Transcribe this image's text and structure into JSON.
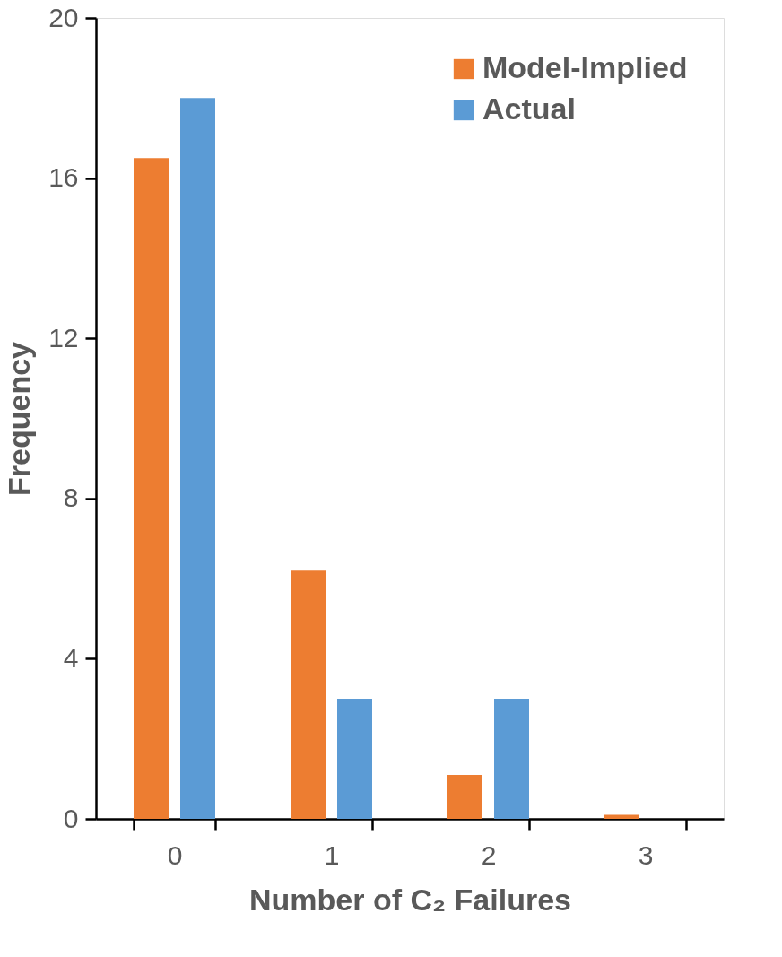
{
  "chart_data": {
    "type": "bar",
    "xlabel": "Number of C₂ Failures",
    "ylabel": "Frequency",
    "categories": [
      "0",
      "1",
      "2",
      "3"
    ],
    "series": [
      {
        "name": "Model-Implied",
        "color": "#ed7d31",
        "values": [
          16.5,
          6.2,
          1.1,
          0.1
        ]
      },
      {
        "name": "Actual",
        "color": "#5b9bd5",
        "values": [
          18,
          3,
          3,
          0
        ]
      }
    ],
    "ylim": [
      0,
      20
    ],
    "yticks": [
      0,
      4,
      8,
      12,
      16,
      20
    ],
    "grid": false,
    "legend": "top right"
  }
}
